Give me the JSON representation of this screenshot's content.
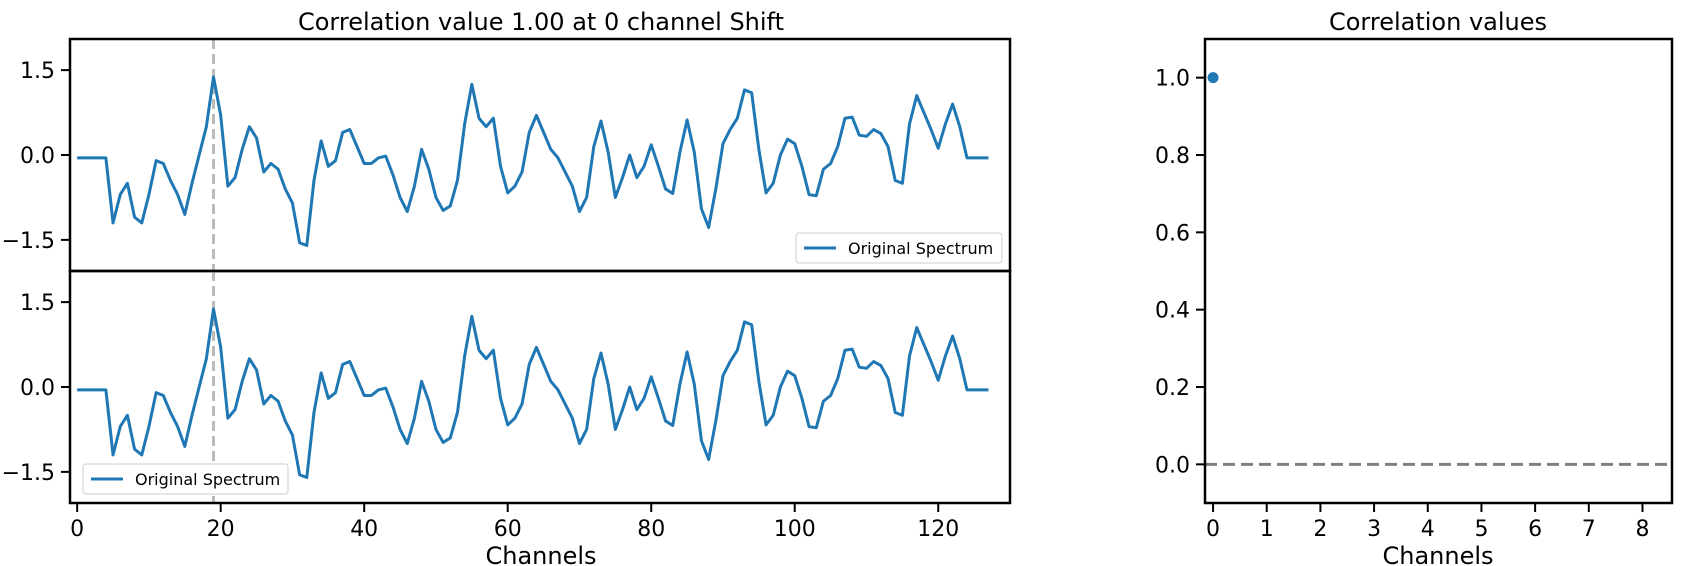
{
  "chart_data": [
    {
      "type": "line",
      "title": "Correlation value 1.00 at 0 channel Shift",
      "xlabel": "",
      "ylabel": "",
      "xlim": [
        -1,
        130
      ],
      "ylim": [
        -2.05,
        2.05
      ],
      "yticks": [
        1.5,
        0.0,
        -1.5
      ],
      "ytick_labels": [
        "1.5",
        "0.0",
        "−1.5"
      ],
      "marker_x": 19,
      "legend": "bottom-right",
      "series": [
        {
          "name": "Original Spectrum",
          "color": "#1f77b4",
          "x": [
            0,
            1,
            2,
            3,
            4,
            5,
            6,
            7,
            8,
            9,
            10,
            11,
            12,
            13,
            14,
            15,
            16,
            17,
            18,
            19,
            20,
            21,
            22,
            23,
            24,
            25,
            26,
            27,
            28,
            29,
            30,
            31,
            32,
            33,
            34,
            35,
            36,
            37,
            38,
            39,
            40,
            41,
            42,
            43,
            44,
            45,
            46,
            47,
            48,
            49,
            50,
            51,
            52,
            53,
            54,
            55,
            56,
            57,
            58,
            59,
            60,
            61,
            62,
            63,
            64,
            65,
            66,
            67,
            68,
            69,
            70,
            71,
            72,
            73,
            74,
            75,
            76,
            77,
            78,
            79,
            80,
            81,
            82,
            83,
            84,
            85,
            86,
            87,
            88,
            89,
            90,
            91,
            92,
            93,
            94,
            95,
            96,
            97,
            98,
            99,
            100,
            101,
            102,
            103,
            104,
            105,
            106,
            107,
            108,
            109,
            110,
            111,
            112,
            113,
            114,
            115,
            116,
            117,
            118,
            119,
            120,
            121,
            122,
            123,
            124,
            125,
            126,
            127
          ],
          "values": [
            -0.05,
            -0.05,
            -0.05,
            -0.05,
            -0.05,
            -1.2,
            -0.7,
            -0.5,
            -1.1,
            -1.2,
            -0.7,
            -0.1,
            -0.15,
            -0.45,
            -0.7,
            -1.05,
            -0.5,
            0,
            0.5,
            1.38,
            0.7,
            -0.55,
            -0.4,
            0.1,
            0.5,
            0.3,
            -0.3,
            -0.15,
            -0.25,
            -0.6,
            -0.85,
            -1.55,
            -1.6,
            -0.45,
            0.25,
            -0.2,
            -0.1,
            0.4,
            0.45,
            0.15,
            -0.15,
            -0.15,
            -0.05,
            -0.02,
            -0.35,
            -0.75,
            -1.0,
            -0.55,
            0.1,
            -0.25,
            -0.75,
            -0.98,
            -0.9,
            -0.45,
            0.55,
            1.25,
            0.65,
            0.5,
            0.65,
            -0.2,
            -0.67,
            -0.55,
            -0.3,
            0.4,
            0.7,
            0.4,
            0.1,
            -0.05,
            -0.3,
            -0.55,
            -1.0,
            -0.75,
            0.15,
            0.6,
            0.05,
            -0.75,
            -0.4,
            0,
            -0.4,
            -0.2,
            0.18,
            -0.2,
            -0.6,
            -0.68,
            0.05,
            0.62,
            0.05,
            -0.95,
            -1.28,
            -0.6,
            0.2,
            0.45,
            0.65,
            1.15,
            1.1,
            0.1,
            -0.67,
            -0.5,
            0,
            0.28,
            0.2,
            -0.2,
            -0.7,
            -0.72,
            -0.25,
            -0.15,
            0.15,
            0.65,
            0.67,
            0.35,
            0.33,
            0.45,
            0.38,
            0.15,
            -0.45,
            -0.5,
            0.55,
            1.05,
            0.75,
            0.45,
            0.12,
            0.55,
            0.9,
            0.5,
            -0.05,
            -0.05,
            -0.05,
            -0.05
          ]
        }
      ]
    },
    {
      "type": "line",
      "title": "",
      "xlabel": "Channels",
      "ylabel": "",
      "xlim": [
        -1,
        130
      ],
      "ylim": [
        -2.05,
        2.05
      ],
      "xticks": [
        0,
        20,
        40,
        60,
        80,
        100,
        120
      ],
      "xtick_labels": [
        "0",
        "20",
        "40",
        "60",
        "80",
        "100",
        "120"
      ],
      "yticks": [
        1.5,
        0.0,
        -1.5
      ],
      "ytick_labels": [
        "1.5",
        "0.0",
        "−1.5"
      ],
      "marker_x": 19,
      "legend": "bottom-left",
      "series": [
        {
          "name": "Original Spectrum",
          "color": "#1f77b4",
          "values_same_as_top": true
        }
      ]
    },
    {
      "type": "scatter",
      "title": "Correlation values",
      "xlabel": "Channels",
      "ylabel": "",
      "xlim": [
        -0.15,
        8.55
      ],
      "ylim": [
        -0.1,
        1.1
      ],
      "xticks": [
        0,
        1,
        2,
        3,
        4,
        5,
        6,
        7,
        8
      ],
      "xtick_labels": [
        "0",
        "1",
        "2",
        "3",
        "4",
        "5",
        "6",
        "7",
        "8"
      ],
      "yticks": [
        1.0,
        0.8,
        0.6,
        0.4,
        0.2,
        0.0
      ],
      "ytick_labels": [
        "1.0",
        "0.8",
        "0.6",
        "0.4",
        "0.2",
        "0.0"
      ],
      "reference_line_y": 0,
      "grid": false,
      "series": [
        {
          "color": "#1f77b4",
          "x": [
            0
          ],
          "y": [
            1.0
          ]
        }
      ]
    }
  ]
}
